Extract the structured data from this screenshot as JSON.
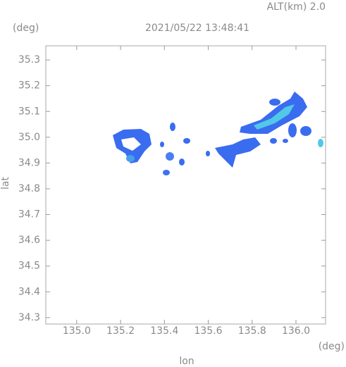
{
  "chart_data": {
    "type": "map",
    "title": "2021/05/22 13:48:41",
    "altitude_label": "ALT(km) 2.0",
    "ylabel": "lat",
    "xlabel": "lon",
    "yunit": "(deg)",
    "xunit": "(deg)",
    "xlim": [
      134.859,
      136.135
    ],
    "ylim": [
      34.275,
      35.355
    ],
    "xticks": [
      {
        "value": 135,
        "label": "135.0"
      },
      135.2,
      135.4,
      135.6,
      135.8,
      {
        "value": 136,
        "label": "136.0"
      }
    ],
    "yticks": [
      34.3,
      34.4,
      34.5,
      34.6,
      34.7,
      34.8,
      34.9,
      {
        "value": 35,
        "label": "35.0"
      },
      35.1,
      35.2,
      35.3
    ]
  }
}
